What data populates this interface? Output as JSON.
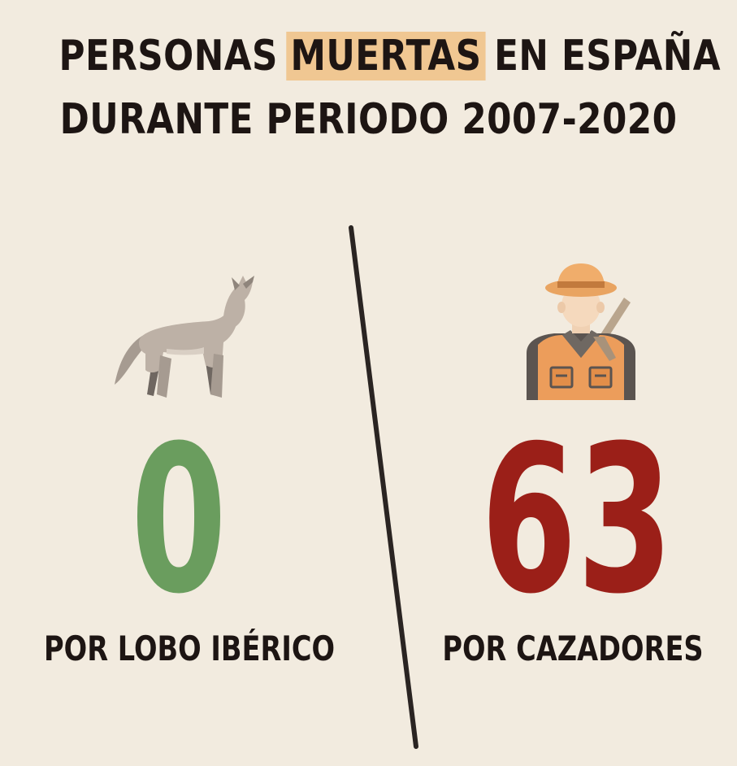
{
  "title": {
    "line1_before": "PERSONAS ",
    "line1_highlight": "MUERTAS",
    "line1_after": " EN ESPAÑA",
    "line2": "DURANTE PERIODO 2007-2020"
  },
  "left": {
    "icon": "wolf-icon",
    "value": "0",
    "label": "POR LOBO IBÉRICO",
    "color": "#6a9d5e"
  },
  "right": {
    "icon": "hunter-icon",
    "value": "63",
    "label": "POR CAZADORES",
    "color": "#9b1f18"
  },
  "colors": {
    "background": "#f2ebdf",
    "highlight": "#f0c792",
    "text": "#1d1513"
  }
}
